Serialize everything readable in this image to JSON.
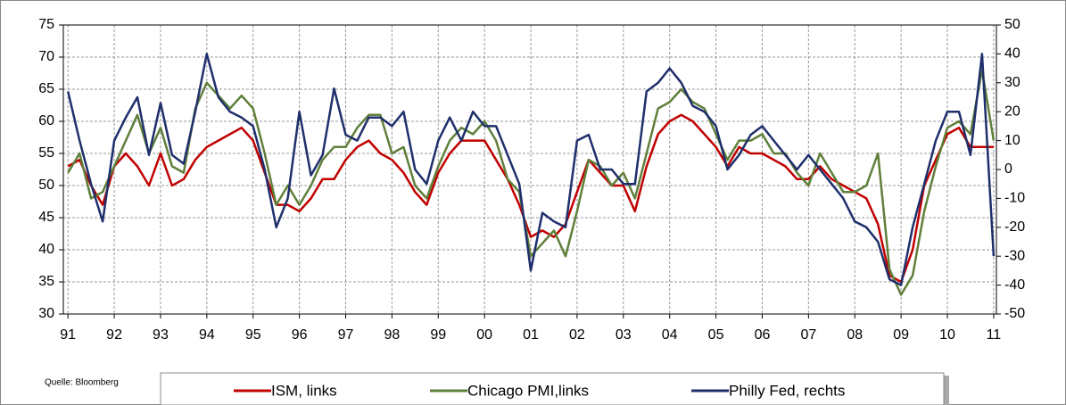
{
  "chart_data": {
    "type": "line",
    "note": "Quelle: Bloomberg",
    "x": [
      1991,
      1991.25,
      1991.5,
      1991.75,
      1992,
      1992.25,
      1992.5,
      1992.75,
      1993,
      1993.25,
      1993.5,
      1993.75,
      1994,
      1994.25,
      1994.5,
      1994.75,
      1995,
      1995.25,
      1995.5,
      1995.75,
      1996,
      1996.25,
      1996.5,
      1996.75,
      1997,
      1997.25,
      1997.5,
      1997.75,
      1998,
      1998.25,
      1998.5,
      1998.75,
      1999,
      1999.25,
      1999.5,
      1999.75,
      2000,
      2000.25,
      2000.5,
      2000.75,
      2001,
      2001.25,
      2001.5,
      2001.75,
      2002,
      2002.25,
      2002.5,
      2002.75,
      2003,
      2003.25,
      2003.5,
      2003.75,
      2004,
      2004.25,
      2004.5,
      2004.75,
      2005,
      2005.25,
      2005.5,
      2005.75,
      2006,
      2006.25,
      2006.5,
      2006.75,
      2007,
      2007.25,
      2007.5,
      2007.75,
      2008,
      2008.25,
      2008.5,
      2008.75,
      2009,
      2009.25,
      2009.5,
      2009.75,
      2010,
      2010.25,
      2010.5,
      2010.75,
      2011
    ],
    "series": [
      {
        "name": "ISM, links",
        "color": "#c00000",
        "values": [
          53,
          54,
          50,
          47,
          53,
          55,
          53,
          50,
          55,
          50,
          51,
          54,
          56,
          57,
          58,
          59,
          57,
          52,
          47,
          47,
          46,
          48,
          51,
          51,
          54,
          56,
          57,
          55,
          54,
          52,
          49,
          47,
          52,
          55,
          57,
          57,
          57,
          54,
          51,
          47,
          42,
          43,
          42,
          44,
          49,
          54,
          52,
          50,
          50,
          46,
          53,
          58,
          60,
          61,
          60,
          58,
          56,
          53,
          56,
          55,
          55,
          54,
          53,
          51,
          51,
          53,
          51,
          50,
          49,
          48,
          44,
          36,
          35,
          40,
          50,
          54,
          58,
          59,
          56,
          56,
          56
        ]
      },
      {
        "name": "Chicago PMI,links",
        "color": "#5f7f3a",
        "values": [
          52,
          55,
          48,
          49,
          53,
          57,
          61,
          55,
          59,
          53,
          52,
          62,
          66,
          64,
          62,
          64,
          62,
          55,
          47,
          50,
          47,
          50,
          54,
          56,
          56,
          59,
          61,
          61,
          55,
          56,
          50,
          48,
          53,
          57,
          59,
          58,
          60,
          57,
          51,
          49,
          39,
          41,
          43,
          39,
          46,
          54,
          53,
          50,
          52,
          48,
          55,
          62,
          63,
          65,
          63,
          62,
          58,
          54,
          57,
          57,
          58,
          55,
          55,
          52,
          50,
          55,
          52,
          49,
          49,
          50,
          55,
          37,
          33,
          36,
          46,
          53,
          59,
          60,
          58,
          68,
          57
        ]
      },
      {
        "name": "Philly Fed, rechts",
        "color": "#1f2f6b",
        "axis": "y2",
        "values": [
          27,
          10,
          -5,
          -18,
          10,
          18,
          25,
          5,
          23,
          5,
          2,
          20,
          40,
          25,
          20,
          18,
          15,
          0,
          -20,
          -10,
          20,
          -2,
          5,
          28,
          12,
          10,
          18,
          18,
          15,
          20,
          0,
          -5,
          10,
          18,
          10,
          20,
          15,
          15,
          5,
          -5,
          -35,
          -15,
          -18,
          -20,
          10,
          12,
          0,
          0,
          -5,
          -5,
          27,
          30,
          35,
          30,
          22,
          20,
          15,
          0,
          5,
          12,
          15,
          10,
          5,
          0,
          5,
          0,
          -5,
          -10,
          -18,
          -20,
          -25,
          -38,
          -40,
          -20,
          -5,
          10,
          20,
          20,
          5,
          40,
          -30
        ]
      }
    ],
    "xlim": [
      1990.9,
      2011.06
    ],
    "xticks": [
      {
        "value": 1991,
        "label": "91"
      },
      {
        "value": 1992,
        "label": "92"
      },
      {
        "value": 1993,
        "label": "93"
      },
      {
        "value": 1994,
        "label": "94"
      },
      {
        "value": 1995,
        "label": "95"
      },
      {
        "value": 1996,
        "label": "96"
      },
      {
        "value": 1997,
        "label": "97"
      },
      {
        "value": 1998,
        "label": "98"
      },
      {
        "value": 1999,
        "label": "99"
      },
      {
        "value": 2000,
        "label": "00"
      },
      {
        "value": 2001,
        "label": "01"
      },
      {
        "value": 2002,
        "label": "02"
      },
      {
        "value": 2003,
        "label": "03"
      },
      {
        "value": 2004,
        "label": "04"
      },
      {
        "value": 2005,
        "label": "05"
      },
      {
        "value": 2006,
        "label": "06"
      },
      {
        "value": 2007,
        "label": "07"
      },
      {
        "value": 2008,
        "label": "08"
      },
      {
        "value": 2009,
        "label": "09"
      },
      {
        "value": 2010,
        "label": "10"
      },
      {
        "value": 2011,
        "label": "11"
      }
    ],
    "ylim": [
      30,
      75
    ],
    "yticks": [
      30,
      35,
      40,
      45,
      50,
      55,
      60,
      65,
      70,
      75
    ],
    "y2lim": [
      -50,
      50
    ],
    "y2ticks": [
      -50,
      -40,
      -30,
      -20,
      -10,
      0,
      10,
      20,
      30,
      40,
      50
    ],
    "grid": true,
    "legend": "bottom"
  }
}
